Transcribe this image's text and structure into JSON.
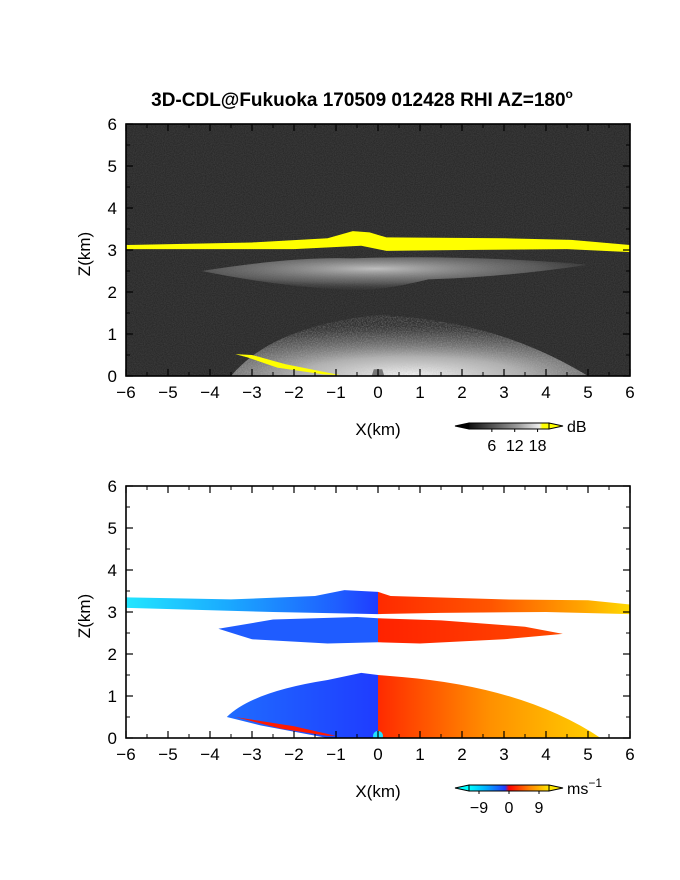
{
  "title": "3D-CDL@Fukuoka 170509 012428 RHI AZ=180",
  "title_degree": "o",
  "chart_data": [
    {
      "type": "heatmap",
      "panel": "top",
      "quantity": "backscatter intensity",
      "xlabel": "X(km)",
      "ylabel": "Z(km)",
      "xlim": [
        -6,
        6
      ],
      "ylim": [
        0,
        6
      ],
      "xticks": [
        -6,
        -5,
        -4,
        -3,
        -2,
        -1,
        0,
        1,
        2,
        3,
        4,
        5,
        6
      ],
      "yticks": [
        0,
        1,
        2,
        3,
        4,
        5,
        6
      ],
      "colorbar": {
        "unit": "dB",
        "ticks": [
          6,
          12,
          18
        ],
        "range": [
          0,
          21
        ]
      },
      "features": [
        {
          "x": [
            -6,
            6
          ],
          "z": [
            3.0,
            3.35
          ],
          "value": "saturated (>18 dB, yellow)",
          "peak_z_at_x": -0.6,
          "peak_z": 3.45
        },
        {
          "x": [
            -4.2,
            5.0
          ],
          "z": [
            1.9,
            2.8
          ],
          "value": "grey echo 6-12 dB"
        },
        {
          "x": [
            -3.5,
            5.0
          ],
          "z": [
            0,
            1.5
          ],
          "value": "grey echo 6-15 dB, brightest near origin"
        },
        {
          "x": [
            -3.4,
            -1.0
          ],
          "z": [
            0,
            0.5
          ],
          "value": "saturated ground-edge streak (yellow)"
        }
      ]
    },
    {
      "type": "heatmap",
      "panel": "bottom",
      "quantity": "Doppler radial velocity",
      "xlabel": "X(km)",
      "ylabel": "Z(km)",
      "xlim": [
        -6,
        6
      ],
      "ylim": [
        0,
        6
      ],
      "xticks": [
        -6,
        -5,
        -4,
        -3,
        -2,
        -1,
        0,
        1,
        2,
        3,
        4,
        5,
        6
      ],
      "yticks": [
        0,
        1,
        2,
        3,
        4,
        5,
        6
      ],
      "colorbar": {
        "unit": "ms",
        "unit_exp": "-1",
        "ticks": [
          -9,
          0,
          9
        ],
        "range": [
          -12,
          12
        ]
      },
      "features": [
        {
          "x": [
            -6,
            0
          ],
          "z": [
            3.0,
            3.5
          ],
          "velocity": [
            -10,
            -6
          ]
        },
        {
          "x": [
            0,
            6
          ],
          "z": [
            2.95,
            3.35
          ],
          "velocity": [
            0,
            9
          ]
        },
        {
          "x": [
            -3.8,
            0
          ],
          "z": [
            2.2,
            2.9
          ],
          "velocity": [
            -8,
            -5
          ]
        },
        {
          "x": [
            0,
            4.5
          ],
          "z": [
            2.2,
            2.9
          ],
          "velocity": [
            0,
            3
          ]
        },
        {
          "x": [
            -3.5,
            0
          ],
          "z": [
            0,
            1.55
          ],
          "velocity": [
            -7,
            -4
          ]
        },
        {
          "x": [
            0,
            5.3
          ],
          "z": [
            0,
            1.55
          ],
          "velocity": [
            0,
            7
          ]
        }
      ]
    }
  ]
}
